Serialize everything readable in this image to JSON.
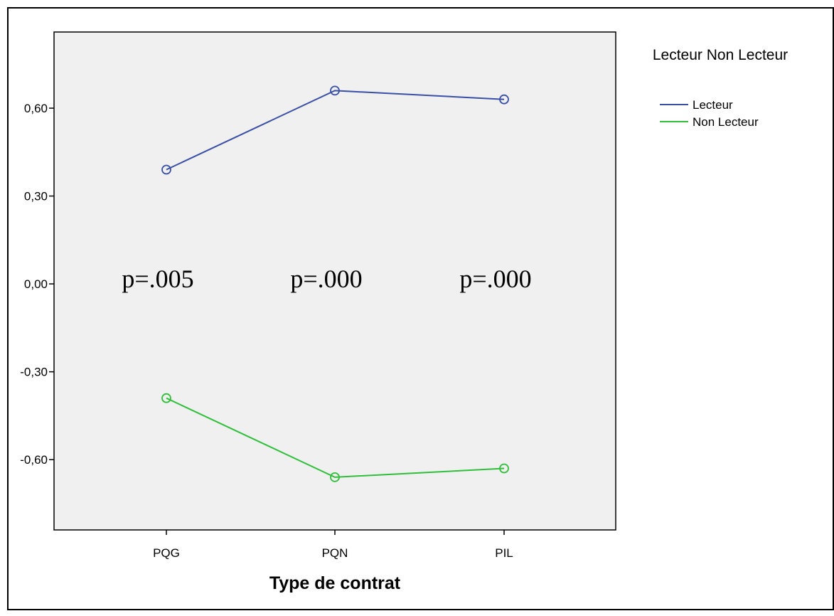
{
  "chart_data": {
    "type": "line",
    "categories": [
      "PQG",
      "PQN",
      "PIL"
    ],
    "series": [
      {
        "name": "Lecteur",
        "values": [
          0.39,
          0.66,
          0.63
        ],
        "color": "#3a4fa8"
      },
      {
        "name": "Non Lecteur",
        "values": [
          -0.39,
          -0.66,
          -0.63
        ],
        "color": "#2fbf3a"
      }
    ],
    "xlabel": "Type de contrat",
    "ylabel": "",
    "ylim": [
      -0.84,
      0.86
    ],
    "yticks": [
      0.6,
      0.3,
      0.0,
      -0.3,
      -0.6
    ],
    "ytick_labels": [
      "0,60",
      "0,30",
      "0,00",
      "-0,30",
      "-0,60"
    ],
    "annotations": [
      "p=.005",
      "p=.000",
      "p=.000"
    ],
    "legend": {
      "title": "Lecteur Non Lecteur",
      "placement": "right"
    },
    "plot_background": "#f0f0f0",
    "grid": false
  }
}
